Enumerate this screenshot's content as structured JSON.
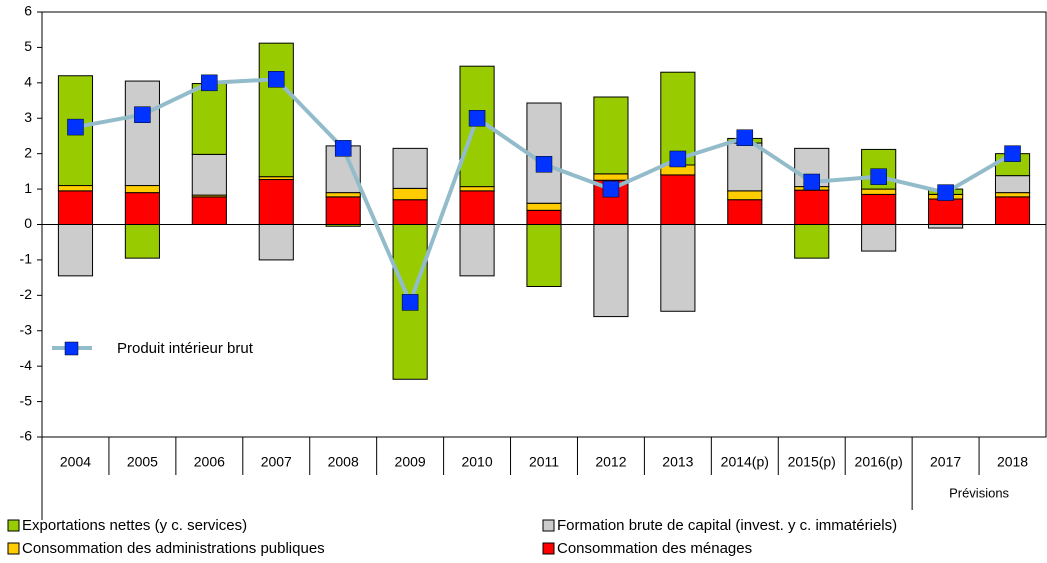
{
  "chart_data": {
    "type": "bar",
    "stacked": true,
    "categories": [
      "2004",
      "2005",
      "2006",
      "2007",
      "2008",
      "2009",
      "2010",
      "2011",
      "2012",
      "2013",
      "2014(p)",
      "2015(p)",
      "2016(p)",
      "2017",
      "2018"
    ],
    "series": [
      {
        "name": "Exportations nettes (y c. services)",
        "color": "#99cc00",
        "values": [
          3.1,
          -0.95,
          2.0,
          3.77,
          -0.05,
          -4.37,
          3.4,
          -1.75,
          2.17,
          2.62,
          0.13,
          -0.95,
          1.12,
          0.15,
          0.62
        ]
      },
      {
        "name": "Formation brute de capital (invest. y c. immatériels)",
        "color": "#cccccc",
        "values": [
          -1.45,
          2.95,
          1.15,
          -1.0,
          1.32,
          1.13,
          -1.45,
          2.83,
          -2.6,
          -2.45,
          1.35,
          1.08,
          -0.75,
          -0.1,
          0.48
        ]
      },
      {
        "name": "Consommation des administrations publiques",
        "color": "#ffcc00",
        "values": [
          0.15,
          0.2,
          0.05,
          0.08,
          0.12,
          0.32,
          0.12,
          0.2,
          0.18,
          0.28,
          0.25,
          0.1,
          0.15,
          0.13,
          0.12
        ]
      },
      {
        "name": "Consommation des ménages",
        "color": "#ff0000",
        "values": [
          0.95,
          0.9,
          0.78,
          1.27,
          0.78,
          0.7,
          0.95,
          0.4,
          1.25,
          1.4,
          0.7,
          0.97,
          0.85,
          0.72,
          0.78
        ]
      }
    ],
    "line": {
      "name": "Produit intérieur brut",
      "color": "#93bccb",
      "marker_color": "#0033ff",
      "values": [
        2.75,
        3.1,
        4.0,
        4.1,
        2.15,
        -2.2,
        3.0,
        1.7,
        1.0,
        1.85,
        2.45,
        1.2,
        1.35,
        0.9,
        2.0
      ]
    },
    "annotation": "Prévisions",
    "ylim": [
      -6,
      6
    ],
    "yticks": [
      -6,
      -5,
      -4,
      -3,
      -2,
      -1,
      0,
      1,
      2,
      3,
      4,
      5,
      6
    ]
  }
}
